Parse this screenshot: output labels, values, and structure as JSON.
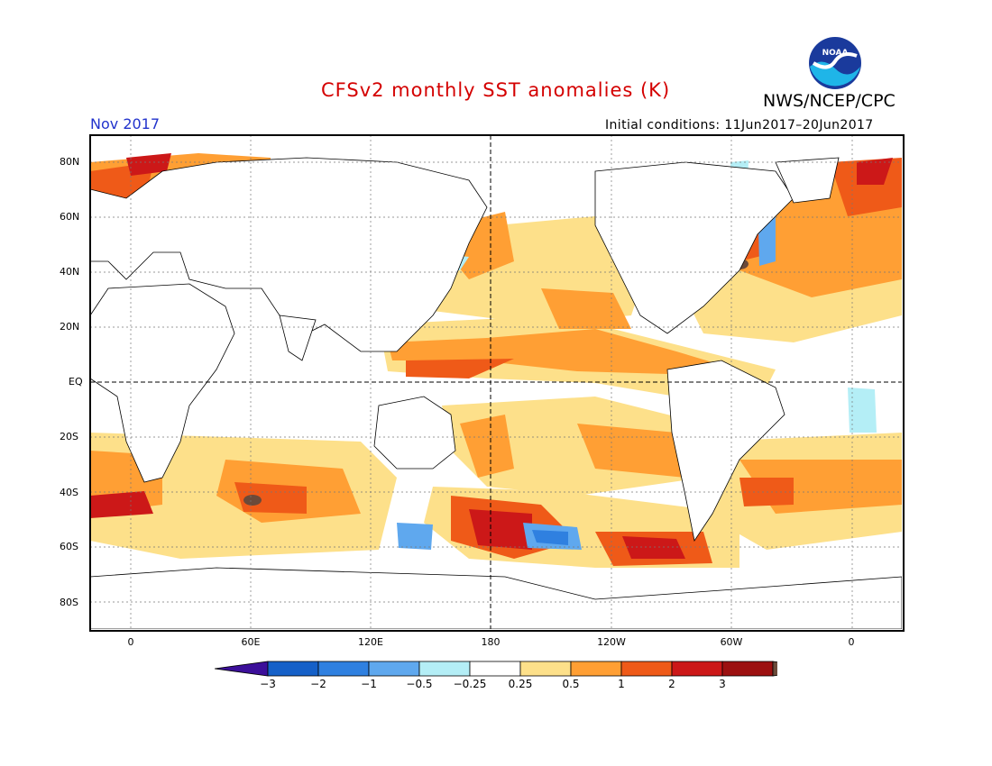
{
  "header": {
    "title": "CFSv2 monthly SST anomalies (K)",
    "agency": "NWS/NCEP/CPC",
    "logo_text": "NOAA",
    "target_month": "Nov 2017",
    "initial_conditions": "Initial conditions: 11Jun2017–20Jun2017"
  },
  "map": {
    "lat_labels": [
      "80N",
      "60N",
      "40N",
      "20N",
      "EQ",
      "20S",
      "40S",
      "60S",
      "80S"
    ],
    "lon_labels": [
      "0",
      "60E",
      "120E",
      "180",
      "120W",
      "60W",
      "0"
    ]
  },
  "colorbar": {
    "labels": [
      "−3",
      "−2",
      "−1",
      "−0.5",
      "−0.25",
      "0.25",
      "0.5",
      "1",
      "2",
      "3"
    ],
    "colors": [
      "#3c0f9a",
      "#1560c8",
      "#2f80e0",
      "#5fa8ee",
      "#b4eef6",
      "#ffffff",
      "#fde08a",
      "#ff9f34",
      "#ef5a18",
      "#cc1818",
      "#9c1010",
      "#6b4a3a"
    ]
  }
}
